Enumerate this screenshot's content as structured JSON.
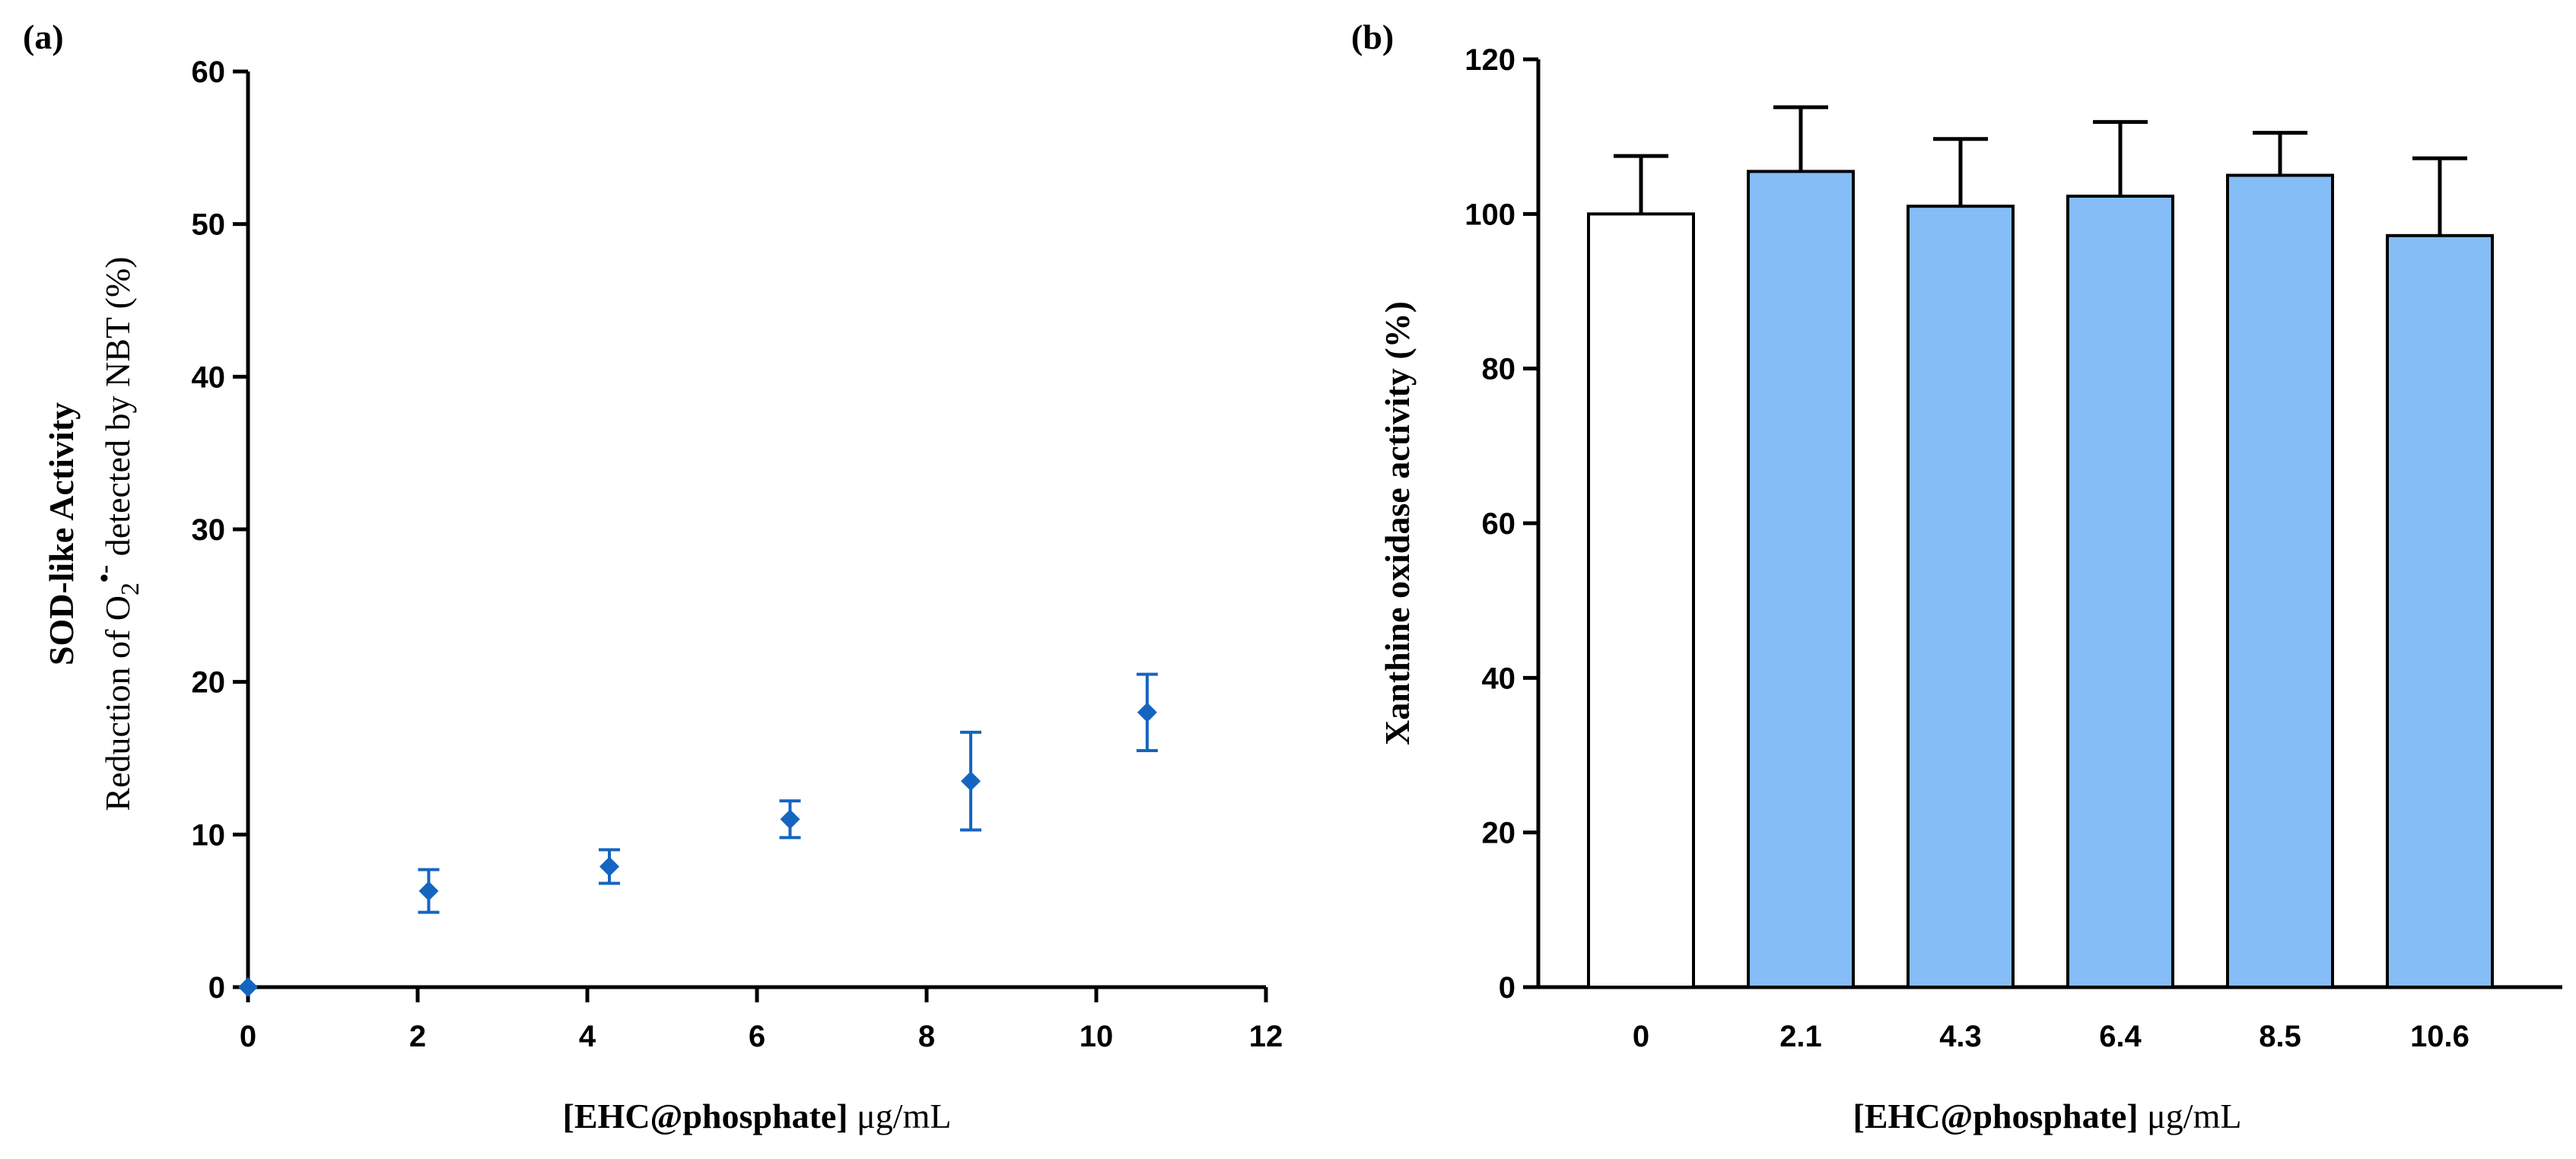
{
  "chart_data": [
    {
      "panel": "(a)",
      "type": "scatter",
      "ylabel_line1": "SOD-like Activity",
      "ylabel_line2_prefix": "Reduction of O",
      "ylabel_line2_sub": "2",
      "ylabel_line2_sup": "•-",
      "ylabel_line2_suffix": " detected by NBT (%)",
      "xlabel_bold": "[EHC@phosphate]",
      "xlabel_unit": " μg/mL",
      "xlim": [
        0,
        12
      ],
      "ylim": [
        0,
        60
      ],
      "xticks": [
        0,
        2,
        4,
        6,
        8,
        10,
        12
      ],
      "yticks": [
        0,
        10,
        20,
        30,
        40,
        50,
        60
      ],
      "marker_color": "#1565c0",
      "points": [
        {
          "x": 0,
          "y": 0,
          "err": 0
        },
        {
          "x": 2.13,
          "y": 6.3,
          "err": 1.4
        },
        {
          "x": 4.26,
          "y": 7.9,
          "err": 1.1
        },
        {
          "x": 6.39,
          "y": 11.0,
          "err": 1.2
        },
        {
          "x": 8.52,
          "y": 13.5,
          "err": 3.2
        },
        {
          "x": 10.6,
          "y": 18.0,
          "err": 2.5
        }
      ]
    },
    {
      "panel": "(b)",
      "type": "bar",
      "ylabel": "Xanthine oxidase activity (%)",
      "xlabel_bold": "[EHC@phosphate]",
      "xlabel_unit": " μg/mL",
      "ylim": [
        0,
        120
      ],
      "yticks": [
        0,
        20,
        40,
        60,
        80,
        100,
        120
      ],
      "categories": [
        "0",
        "2.1",
        "4.3",
        "6.4",
        "8.5",
        "10.6"
      ],
      "values": [
        100,
        105.5,
        101,
        102.3,
        105,
        97.2
      ],
      "errors": [
        7.5,
        8.3,
        8.7,
        9.6,
        5.5,
        10.0
      ],
      "colors": [
        "#ffffff",
        "#85bdf7",
        "#85bdf7",
        "#85bdf7",
        "#85bdf7",
        "#85bdf7"
      ]
    }
  ]
}
